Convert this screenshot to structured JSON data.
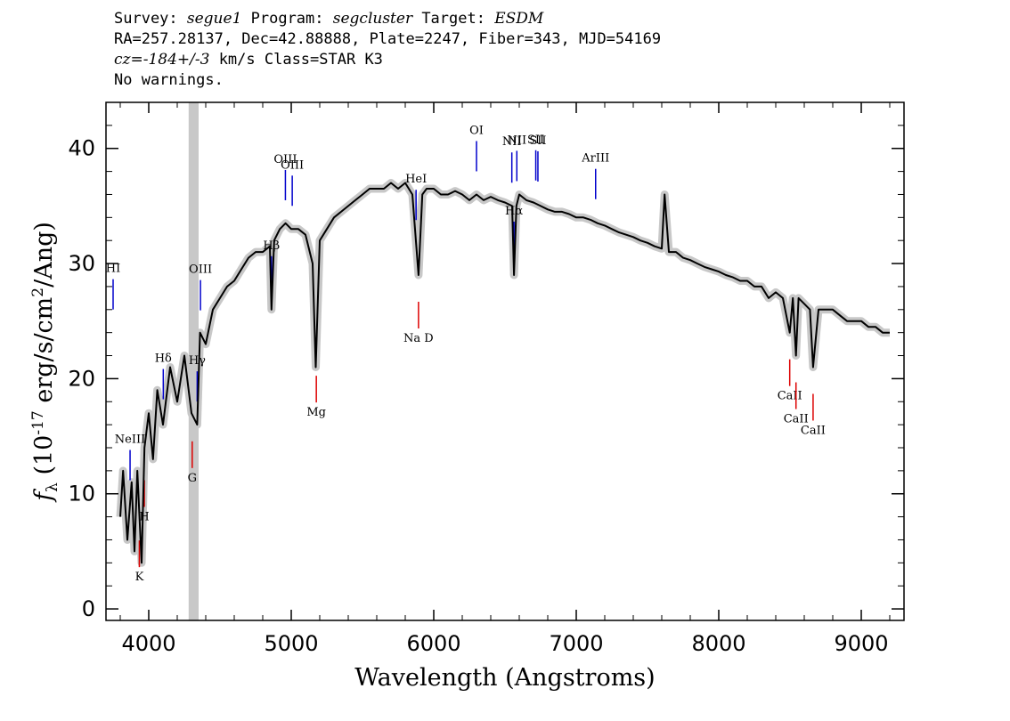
{
  "header": {
    "line1": {
      "survey_label": "Survey: ",
      "survey": "segue1",
      "program_label": " Program: ",
      "program": "segcluster",
      "target_label": " Target: ",
      "target": "ESDM"
    },
    "line2": "RA=257.28137, Dec=42.88888, Plate=2247, Fiber=343, MJD=54169",
    "line3": {
      "cz": "cz=-184+/-3",
      "rest": " km/s Class=STAR K3"
    },
    "line4": "No warnings."
  },
  "colors": {
    "flux": "#000000",
    "error": "#c8c8c8",
    "emission": "#0000cc",
    "absorption": "#dd0000",
    "band": "#c8c8c8"
  },
  "chart_data": {
    "type": "line",
    "xlabel": "Wavelength (Angstroms)",
    "ylabel": "f_λ (10^-17 erg/s/cm^2/Ang)",
    "xlim": [
      3700,
      9300
    ],
    "ylim": [
      -1,
      44
    ],
    "xticks": [
      4000,
      5000,
      6000,
      7000,
      8000,
      9000
    ],
    "yticks": [
      0,
      10,
      20,
      30,
      40
    ],
    "grid": false,
    "masked_band": [
      4280,
      4350
    ],
    "series": [
      {
        "x": [
          3800,
          3820,
          3850,
          3880,
          3900,
          3920,
          3950,
          3970,
          4000,
          4030,
          4060,
          4100,
          4150,
          4200,
          4250,
          4300,
          4340,
          4360,
          4400,
          4450,
          4500,
          4550,
          4600,
          4650,
          4700,
          4750,
          4800,
          4850,
          4861,
          4880,
          4920,
          4960,
          5000,
          5050,
          5100,
          5150,
          5172,
          5200,
          5250,
          5300,
          5350,
          5400,
          5450,
          5500,
          5550,
          5600,
          5650,
          5700,
          5750,
          5800,
          5850,
          5893,
          5920,
          5950,
          6000,
          6050,
          6100,
          6150,
          6200,
          6250,
          6300,
          6350,
          6400,
          6450,
          6500,
          6550,
          6563,
          6580,
          6600,
          6650,
          6700,
          6750,
          6800,
          6850,
          6900,
          6950,
          7000,
          7050,
          7100,
          7150,
          7200,
          7250,
          7300,
          7350,
          7400,
          7450,
          7500,
          7550,
          7600,
          7620,
          7650,
          7700,
          7750,
          7800,
          7850,
          7900,
          7950,
          8000,
          8050,
          8100,
          8150,
          8200,
          8250,
          8300,
          8350,
          8400,
          8450,
          8498,
          8520,
          8542,
          8560,
          8600,
          8640,
          8662,
          8700,
          8750,
          8800,
          8850,
          8900,
          8950,
          9000,
          9050,
          9100,
          9150,
          9200
        ],
        "y": [
          8,
          12,
          6,
          11,
          5,
          12,
          4,
          14,
          17,
          13,
          19,
          16,
          21,
          18,
          22,
          17,
          16,
          24,
          23,
          26,
          27,
          28,
          28.5,
          29.5,
          30.5,
          31,
          31,
          31.5,
          26,
          32,
          33,
          33.5,
          33,
          33,
          32.5,
          30,
          21,
          32,
          33,
          34,
          34.5,
          35,
          35.5,
          36,
          36.5,
          36.5,
          36.5,
          37,
          36.5,
          37,
          36,
          29,
          36,
          36.5,
          36.5,
          36,
          36,
          36.3,
          36,
          35.5,
          36,
          35.5,
          35.8,
          35.5,
          35.3,
          35,
          29,
          35,
          36,
          35.5,
          35.3,
          35,
          34.7,
          34.5,
          34.5,
          34.3,
          34,
          34,
          33.8,
          33.5,
          33.3,
          33,
          32.7,
          32.5,
          32.3,
          32,
          31.8,
          31.5,
          31.3,
          36,
          31,
          31,
          30.5,
          30.3,
          30,
          29.7,
          29.5,
          29.3,
          29,
          28.8,
          28.5,
          28.5,
          28,
          28,
          27,
          27.5,
          27,
          24,
          27,
          22,
          27,
          26.5,
          26,
          21,
          26,
          26,
          26,
          25.5,
          25,
          25,
          25,
          24.5,
          24.5,
          24,
          24
        ]
      }
    ],
    "emission_lines": [
      {
        "label": "HI",
        "x": 3750
      },
      {
        "label": "NeIII",
        "x": 3869
      },
      {
        "label": "Hδ",
        "x": 4102
      },
      {
        "label": "Hγ",
        "x": 4340
      },
      {
        "label": "OIII",
        "x": 4363
      },
      {
        "label": "Hβ",
        "x": 4861
      },
      {
        "label": "OIII",
        "x": 4959
      },
      {
        "label": "OIII",
        "x": 5007
      },
      {
        "label": "HeI",
        "x": 5876
      },
      {
        "label": "OI",
        "x": 6300
      },
      {
        "label": "NII",
        "x": 6548
      },
      {
        "label": "Hα",
        "x": 6563
      },
      {
        "label": "NII",
        "x": 6583
      },
      {
        "label": "SII",
        "x": 6716
      },
      {
        "label": "SII",
        "x": 6731
      },
      {
        "label": "ArIII",
        "x": 7136
      }
    ],
    "absorption_lines": [
      {
        "label": "K",
        "x": 3934
      },
      {
        "label": "H",
        "x": 3969
      },
      {
        "label": "G",
        "x": 4305
      },
      {
        "label": "Mg",
        "x": 5176
      },
      {
        "label": "Na D",
        "x": 5893
      },
      {
        "label": "CaII",
        "x": 8498
      },
      {
        "label": "CaII",
        "x": 8542
      },
      {
        "label": "CaII",
        "x": 8662
      }
    ]
  }
}
